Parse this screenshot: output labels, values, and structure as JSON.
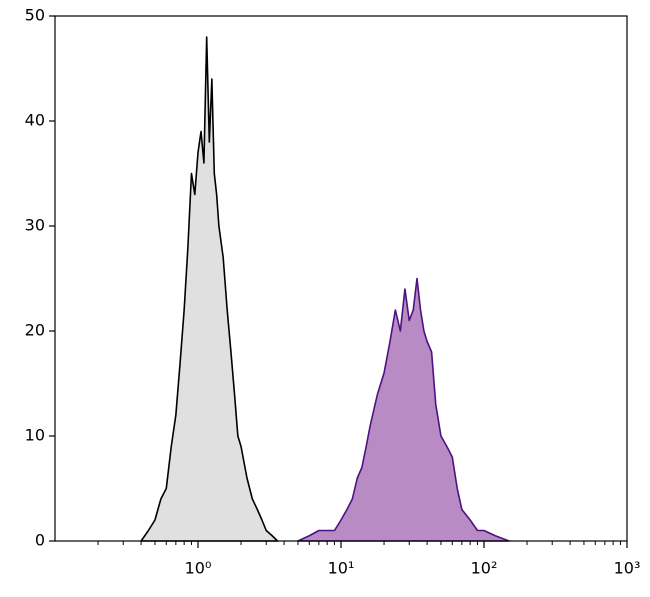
{
  "chart_data": {
    "type": "area",
    "xscale": "log",
    "xlim": [
      0.1,
      1000
    ],
    "ylim": [
      0,
      50
    ],
    "yticks": [
      0,
      10,
      20,
      30,
      40,
      50
    ],
    "xticks": [
      {
        "value": 1,
        "label": "10⁰"
      },
      {
        "value": 10,
        "label": "10¹"
      },
      {
        "value": 100,
        "label": "10²"
      },
      {
        "value": 1000,
        "label": "10³"
      }
    ],
    "xminorticks": [
      0.2,
      0.3,
      0.4,
      0.5,
      0.6,
      0.7,
      0.8,
      0.9,
      2,
      3,
      4,
      5,
      6,
      7,
      8,
      9,
      20,
      30,
      40,
      50,
      60,
      70,
      80,
      90,
      200,
      300,
      400,
      500,
      600,
      700,
      800,
      900
    ],
    "series": [
      {
        "color": "#000000",
        "fill": "#e0e0e0",
        "x": [
          0.4,
          0.45,
          0.5,
          0.55,
          0.6,
          0.65,
          0.7,
          0.75,
          0.8,
          0.85,
          0.9,
          0.95,
          1.0,
          1.05,
          1.1,
          1.15,
          1.2,
          1.25,
          1.3,
          1.35,
          1.4,
          1.5,
          1.6,
          1.7,
          1.8,
          1.9,
          2.0,
          2.2,
          2.4,
          2.6,
          2.8,
          3.0,
          3.3,
          3.6
        ],
        "values": [
          0,
          1,
          2,
          4,
          5,
          9,
          12,
          17,
          22,
          28,
          35,
          33,
          37,
          39,
          36,
          48,
          38,
          44,
          35,
          33,
          30,
          27,
          22,
          18,
          14,
          10,
          9,
          6,
          4,
          3,
          2,
          1,
          0.5,
          0
        ]
      },
      {
        "color": "#4b1380",
        "fill": "#b98bc4",
        "x": [
          5,
          6,
          7,
          8,
          9,
          10,
          11,
          12,
          13,
          14,
          15,
          16,
          18,
          20,
          22,
          24,
          26,
          28,
          30,
          32,
          34,
          36,
          38,
          40,
          43,
          46,
          50,
          55,
          60,
          65,
          70,
          80,
          90,
          100,
          120,
          150
        ],
        "values": [
          0,
          0.5,
          1,
          1,
          1,
          2,
          3,
          4,
          6,
          7,
          9,
          11,
          14,
          16,
          19,
          22,
          20,
          24,
          21,
          22,
          25,
          22,
          20,
          19,
          18,
          13,
          10,
          9,
          8,
          5,
          3,
          2,
          1,
          1,
          0.5,
          0
        ]
      }
    ]
  }
}
